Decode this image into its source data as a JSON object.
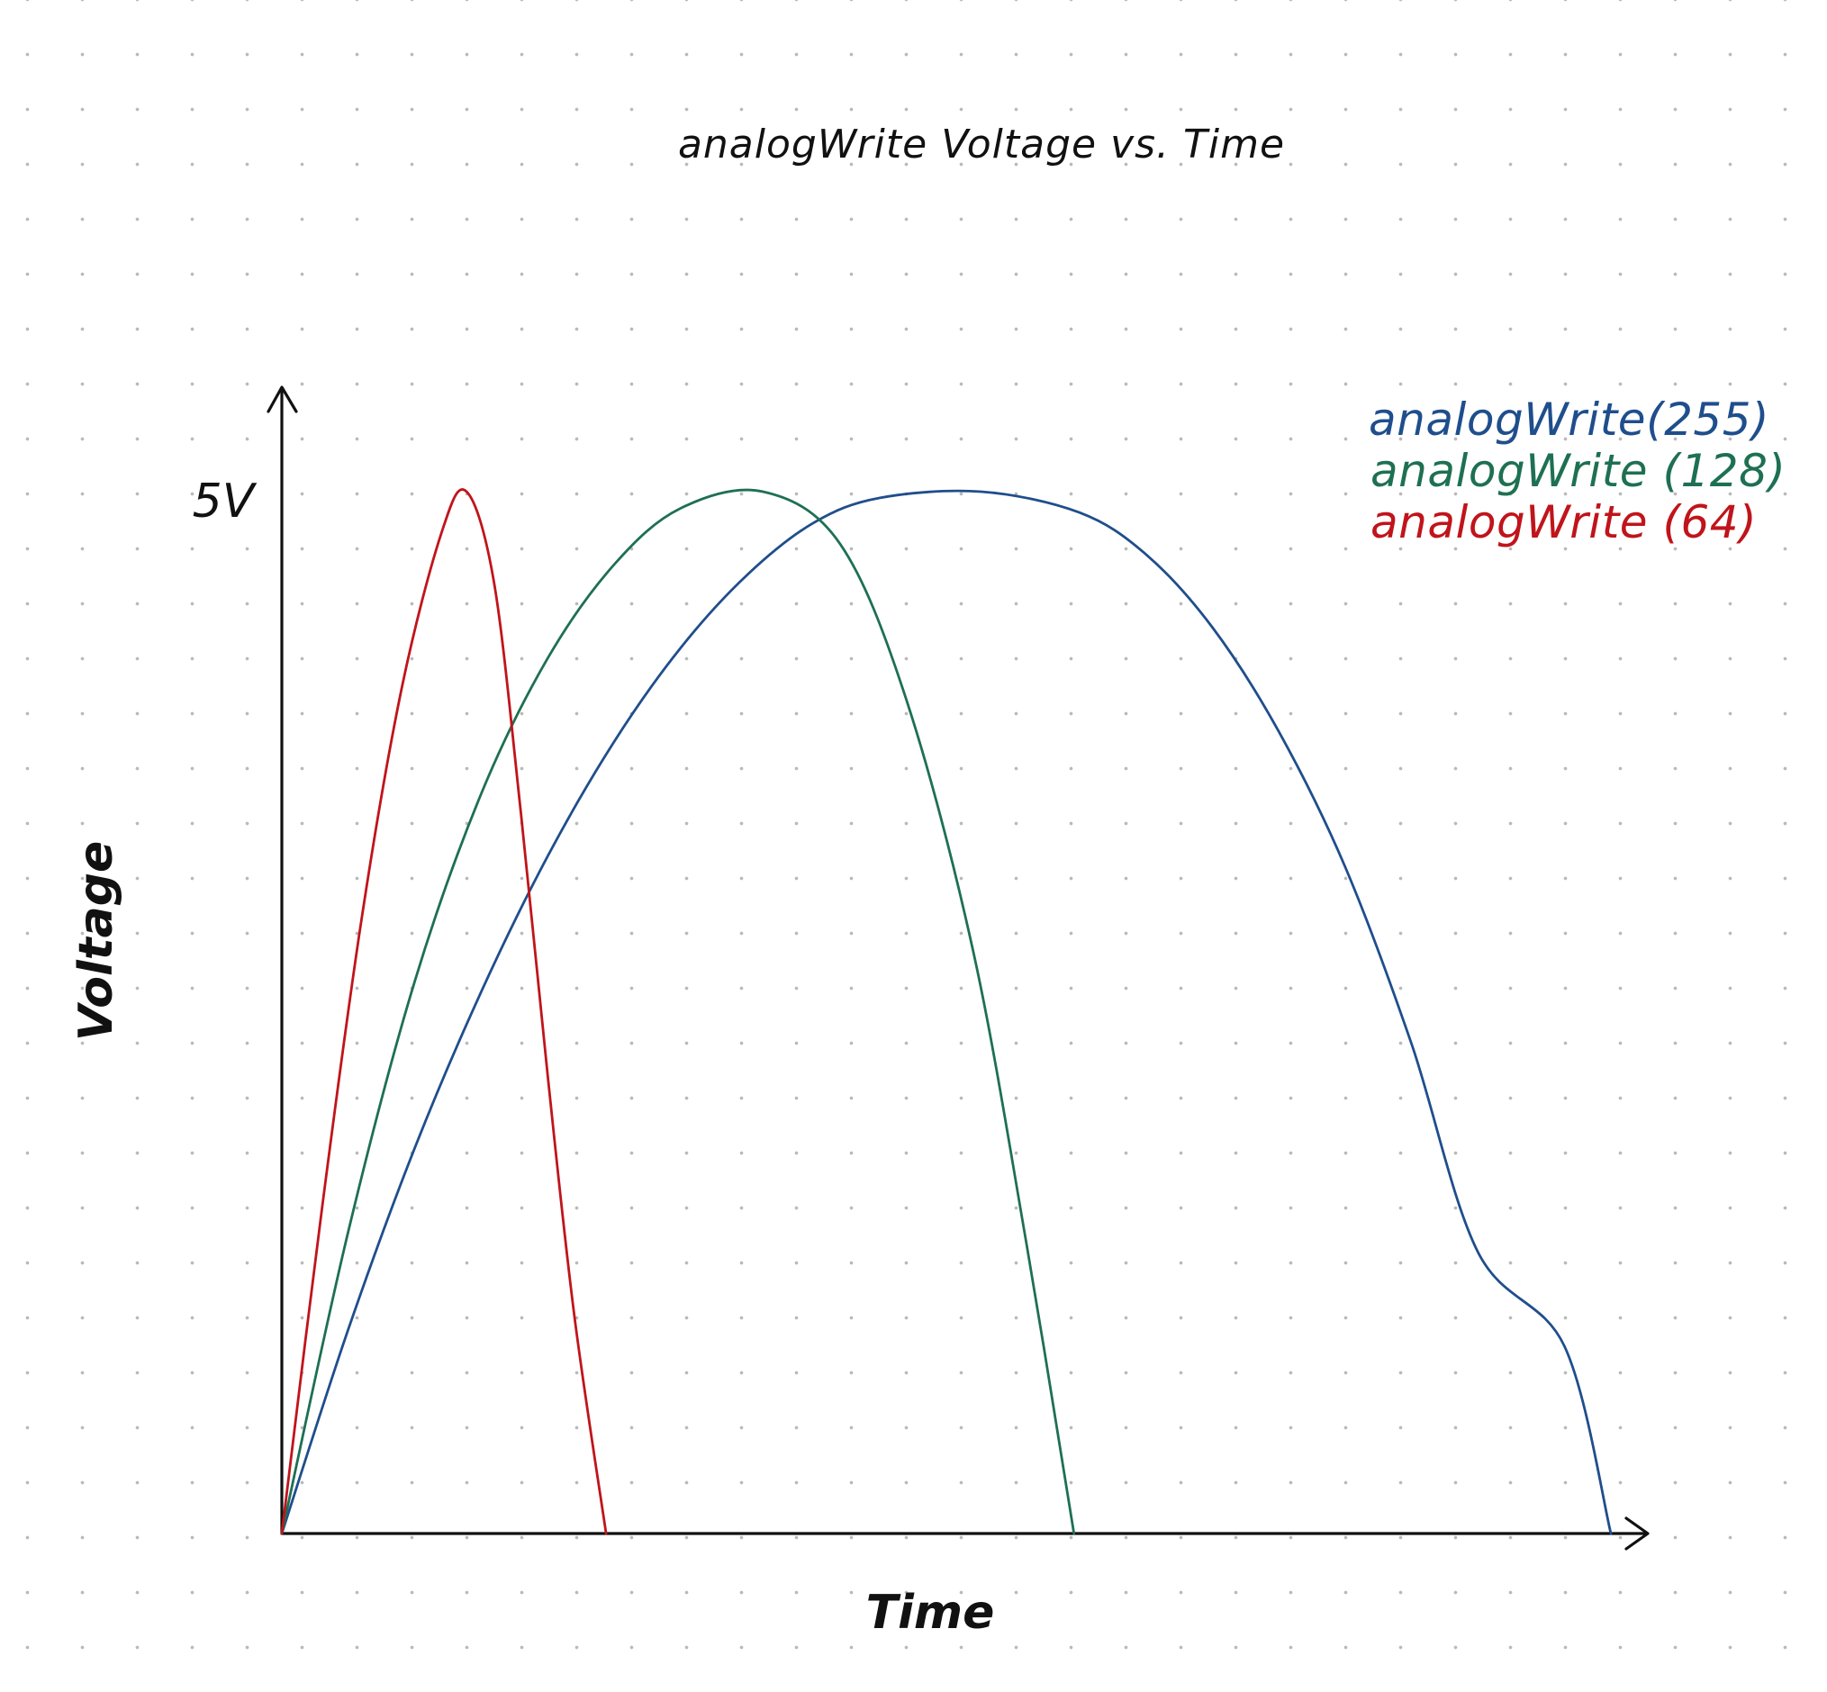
{
  "chart_data": {
    "type": "line",
    "title": "analogWrite Voltage vs. Time",
    "xlabel": "Time",
    "ylabel": "Voltage",
    "y_tick_labels": [
      {
        "value": 5,
        "label": "5V"
      }
    ],
    "xlim": [
      0,
      100
    ],
    "ylim": [
      0,
      5
    ],
    "grid": "dotted",
    "legend_position": "top-right",
    "series": [
      {
        "name": "analogWrite(255)",
        "color": "#1f4e8c",
        "x": [
          0,
          5,
          10,
          15,
          20,
          25,
          30,
          35,
          40,
          45,
          52.6,
          60,
          65,
          70,
          75,
          80,
          85,
          90,
          96.5,
          100
        ],
        "y": [
          0,
          0.98,
          1.85,
          2.6,
          3.25,
          3.8,
          4.25,
          4.6,
          4.85,
          4.97,
          5.0,
          4.9,
          4.7,
          4.35,
          3.85,
          3.2,
          2.35,
          1.35,
          0.9,
          0
        ]
      },
      {
        "name": "analogWrite (128)",
        "color": "#1e7052",
        "x": [
          0,
          5,
          10,
          15,
          20,
          25,
          30,
          36.2,
          42,
          47,
          52,
          56,
          59.6
        ],
        "y": [
          0,
          1.45,
          2.65,
          3.55,
          4.2,
          4.65,
          4.92,
          5.0,
          4.75,
          4.0,
          2.8,
          1.4,
          0
        ]
      },
      {
        "name": "analogWrite (64)",
        "color": "#c0141b",
        "x": [
          0,
          3,
          6,
          9,
          12,
          13.9,
          16,
          18,
          20,
          22,
          24.4
        ],
        "y": [
          0,
          1.55,
          2.95,
          4.05,
          4.8,
          5.0,
          4.55,
          3.45,
          2.2,
          1.05,
          0
        ]
      }
    ]
  }
}
